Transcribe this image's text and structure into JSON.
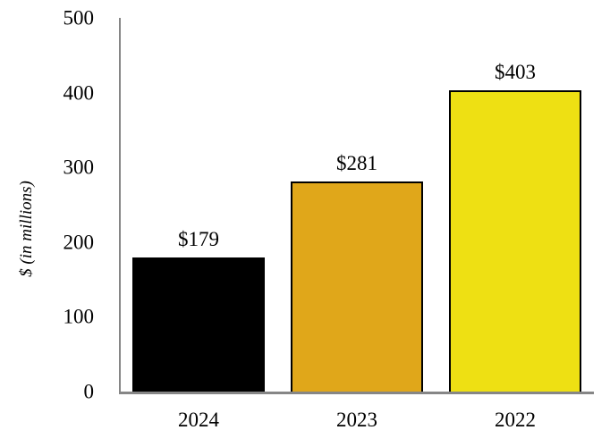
{
  "chart_data": {
    "type": "bar",
    "categories": [
      "2024",
      "2023",
      "2022"
    ],
    "values": [
      179,
      281,
      403
    ],
    "value_labels": [
      "$179",
      "$281",
      "$403"
    ],
    "bar_colors": [
      "#000000",
      "#E0A71A",
      "#EEE013"
    ],
    "bar_border_color": "#000000",
    "xlabel": "",
    "ylabel": "$ (in millions)",
    "ylim": [
      0,
      500
    ],
    "yticks": [
      0,
      100,
      200,
      300,
      400,
      500
    ],
    "axis_color": "#868686",
    "grid": false,
    "legend": false
  }
}
